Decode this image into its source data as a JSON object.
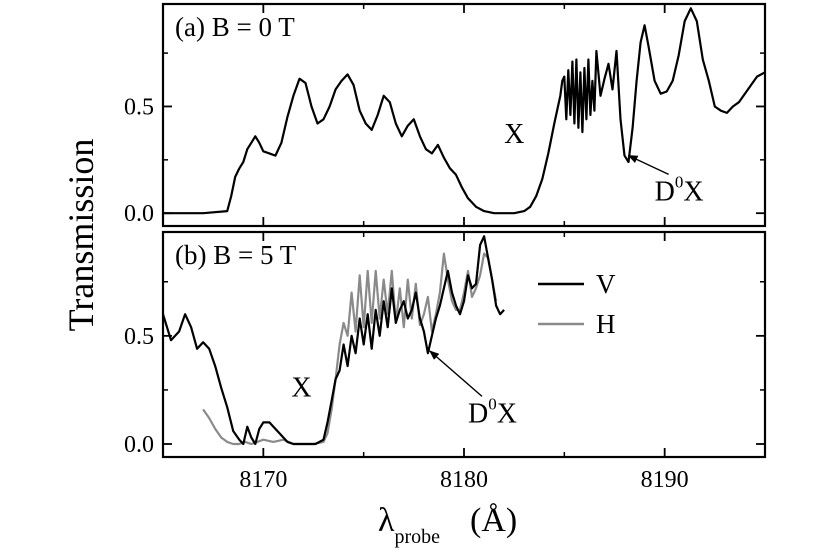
{
  "figure": {
    "ylabel": "Transmission",
    "xlabel_main": "λ",
    "xlabel_sub": "probe",
    "xlabel_unit": "(Å)"
  },
  "colors": {
    "axis": "#000000",
    "series_V": "#000000",
    "series_H": "#8a8a8a"
  },
  "chart_data": [
    {
      "type": "line",
      "panel_label": "(a)  B = 0 T",
      "xlim": [
        8165,
        8195
      ],
      "ylim": [
        -0.06,
        0.98
      ],
      "xticks": [
        8170,
        8180,
        8190
      ],
      "xtick_labels": [
        "8170",
        "8180",
        "8190"
      ],
      "yticks": [
        0.0,
        0.5
      ],
      "ytick_labels": [
        "0.0",
        "0.5"
      ],
      "grid": false,
      "annotations": [
        {
          "text": "X",
          "x": 8182.0,
          "y": 0.33
        },
        {
          "text": "D",
          "sup": "0",
          "after": "X",
          "x": 8189.5,
          "y": 0.06,
          "arrow_to": [
            8188.2,
            0.27
          ]
        }
      ],
      "series": [
        {
          "x": [
            8165.0,
            8167.0,
            8168.2,
            8168.4,
            8168.6,
            8168.8,
            8169.0,
            8169.2,
            8169.4,
            8169.6,
            8169.8,
            8170.0,
            8170.3,
            8170.6,
            8170.9,
            8171.2,
            8171.5,
            8171.8,
            8172.1,
            8172.4,
            8172.7,
            8173.0,
            8173.3,
            8173.6,
            8173.9,
            8174.2,
            8174.5,
            8174.8,
            8175.1,
            8175.4,
            8175.7,
            8176.0,
            8176.3,
            8176.6,
            8176.9,
            8177.2,
            8177.5,
            8177.8,
            8178.1,
            8178.4,
            8178.7,
            8179.0,
            8179.3,
            8179.6,
            8179.9,
            8180.2,
            8180.6,
            8181.0,
            8181.5,
            8182.0,
            8182.5,
            8183.0,
            8183.3,
            8183.6,
            8183.9,
            8184.2,
            8184.5,
            8184.8,
            8184.9,
            8185.0,
            8185.1,
            8185.2,
            8185.3,
            8185.4,
            8185.5,
            8185.6,
            8185.7,
            8185.8,
            8185.9,
            8186.0,
            8186.1,
            8186.2,
            8186.3,
            8186.4,
            8186.5,
            8186.6,
            8186.8,
            8187.0,
            8187.2,
            8187.4,
            8187.6,
            8187.8,
            8188.0,
            8188.2,
            8188.4,
            8188.6,
            8188.8,
            8189.0,
            8189.2,
            8189.5,
            8189.8,
            8190.1,
            8190.4,
            8190.7,
            8191.0,
            8191.3,
            8191.6,
            8191.9,
            8192.2,
            8192.5,
            8192.8,
            8193.1,
            8193.4,
            8193.7,
            8194.0,
            8194.3,
            8194.6,
            8195.0
          ],
          "y": [
            0.0,
            0.0,
            0.01,
            0.08,
            0.17,
            0.21,
            0.24,
            0.3,
            0.33,
            0.36,
            0.33,
            0.29,
            0.28,
            0.27,
            0.33,
            0.45,
            0.55,
            0.63,
            0.61,
            0.5,
            0.42,
            0.44,
            0.5,
            0.58,
            0.62,
            0.65,
            0.6,
            0.48,
            0.42,
            0.39,
            0.46,
            0.55,
            0.52,
            0.42,
            0.36,
            0.41,
            0.44,
            0.36,
            0.3,
            0.28,
            0.32,
            0.26,
            0.21,
            0.18,
            0.12,
            0.07,
            0.03,
            0.01,
            0.0,
            0.0,
            0.0,
            0.01,
            0.03,
            0.08,
            0.16,
            0.28,
            0.42,
            0.55,
            0.62,
            0.64,
            0.44,
            0.67,
            0.46,
            0.71,
            0.42,
            0.72,
            0.4,
            0.66,
            0.38,
            0.68,
            0.44,
            0.72,
            0.46,
            0.62,
            0.48,
            0.76,
            0.55,
            0.63,
            0.7,
            0.58,
            0.76,
            0.44,
            0.27,
            0.24,
            0.4,
            0.62,
            0.8,
            0.88,
            0.78,
            0.62,
            0.56,
            0.57,
            0.62,
            0.74,
            0.9,
            0.96,
            0.9,
            0.72,
            0.62,
            0.5,
            0.48,
            0.47,
            0.5,
            0.52,
            0.56,
            0.6,
            0.64,
            0.66
          ]
        }
      ]
    },
    {
      "type": "line",
      "panel_label": "(b)  B = 5 T",
      "xlim": [
        8165,
        8195
      ],
      "ylim": [
        -0.06,
        0.98
      ],
      "xticks": [
        8170,
        8180,
        8190
      ],
      "xtick_labels": [
        "8170",
        "8180",
        "8190"
      ],
      "yticks": [
        0.0,
        0.5
      ],
      "ytick_labels": [
        "0.0",
        "0.5"
      ],
      "grid": false,
      "legend_position": "top-right",
      "annotations": [
        {
          "text": "X",
          "x": 8171.4,
          "y": 0.22
        },
        {
          "text": "D",
          "sup": "0",
          "after": "X",
          "x": 8180.2,
          "y": 0.1,
          "arrow_to": [
            8178.3,
            0.43
          ]
        }
      ],
      "series": [
        {
          "name": "V",
          "x": [
            8165.0,
            8165.4,
            8165.8,
            8166.1,
            8166.4,
            8166.7,
            8167.0,
            8167.3,
            8167.6,
            8167.9,
            8168.2,
            8168.5,
            8168.8,
            8169.0,
            8169.2,
            8169.4,
            8169.6,
            8169.8,
            8170.0,
            8170.3,
            8170.6,
            8170.9,
            8171.2,
            8171.5,
            8171.8,
            8172.2,
            8172.6,
            8173.0,
            8173.2,
            8173.4,
            8173.6,
            8173.8,
            8174.0,
            8174.2,
            8174.4,
            8174.6,
            8174.8,
            8175.0,
            8175.2,
            8175.4,
            8175.6,
            8175.8,
            8176.0,
            8176.2,
            8176.4,
            8176.6,
            8176.8,
            8177.0,
            8177.2,
            8177.4,
            8177.6,
            8177.8,
            8178.0,
            8178.2,
            8178.4,
            8178.6,
            8178.8,
            8179.0,
            8179.2,
            8179.4,
            8179.6,
            8179.8,
            8180.0,
            8180.2,
            8180.4,
            8180.6,
            8180.8,
            8181.0,
            8181.2,
            8181.4,
            8181.6,
            8181.8,
            8182.0
          ],
          "y": [
            0.6,
            0.48,
            0.52,
            0.6,
            0.54,
            0.44,
            0.47,
            0.44,
            0.36,
            0.26,
            0.17,
            0.06,
            0.02,
            0.0,
            0.08,
            0.03,
            0.0,
            0.07,
            0.1,
            0.1,
            0.07,
            0.04,
            0.01,
            0.0,
            0.0,
            0.0,
            0.0,
            0.02,
            0.1,
            0.2,
            0.3,
            0.34,
            0.46,
            0.36,
            0.5,
            0.42,
            0.58,
            0.46,
            0.6,
            0.44,
            0.62,
            0.5,
            0.66,
            0.54,
            0.72,
            0.56,
            0.62,
            0.66,
            0.58,
            0.62,
            0.7,
            0.58,
            0.52,
            0.42,
            0.5,
            0.58,
            0.64,
            0.72,
            0.8,
            0.7,
            0.64,
            0.6,
            0.66,
            0.78,
            0.72,
            0.74,
            0.92,
            0.96,
            0.86,
            0.76,
            0.64,
            0.6,
            0.62
          ]
        },
        {
          "name": "H",
          "x": [
            8167.0,
            8167.3,
            8167.6,
            8167.9,
            8168.2,
            8168.5,
            8168.8,
            8169.1,
            8169.4,
            8169.7,
            8170.0,
            8170.5,
            8171.0,
            8171.5,
            8172.0,
            8172.5,
            8173.0,
            8173.2,
            8173.4,
            8173.6,
            8173.8,
            8174.0,
            8174.2,
            8174.4,
            8174.6,
            8174.8,
            8175.0,
            8175.2,
            8175.4,
            8175.6,
            8175.8,
            8176.0,
            8176.2,
            8176.4,
            8176.6,
            8176.8,
            8177.0,
            8177.2,
            8177.4,
            8177.6,
            8177.8,
            8178.0,
            8178.2,
            8178.4,
            8178.6,
            8178.8,
            8179.0,
            8179.2,
            8179.4,
            8179.6,
            8179.8,
            8180.0,
            8180.2,
            8180.4,
            8180.6,
            8180.8,
            8181.0,
            8181.2,
            8181.4,
            8181.6
          ],
          "y": [
            0.16,
            0.12,
            0.07,
            0.03,
            0.01,
            0.0,
            0.0,
            0.01,
            0.0,
            0.01,
            0.02,
            0.01,
            0.02,
            0.0,
            0.0,
            0.0,
            0.01,
            0.05,
            0.16,
            0.3,
            0.46,
            0.56,
            0.5,
            0.7,
            0.52,
            0.78,
            0.54,
            0.8,
            0.56,
            0.8,
            0.58,
            0.76,
            0.6,
            0.8,
            0.56,
            0.72,
            0.54,
            0.76,
            0.58,
            0.74,
            0.55,
            0.6,
            0.68,
            0.52,
            0.6,
            0.7,
            0.88,
            0.76,
            0.66,
            0.62,
            0.62,
            0.7,
            0.8,
            0.68,
            0.72,
            0.78,
            0.88,
            0.86,
            0.76,
            0.66
          ]
        }
      ]
    }
  ]
}
